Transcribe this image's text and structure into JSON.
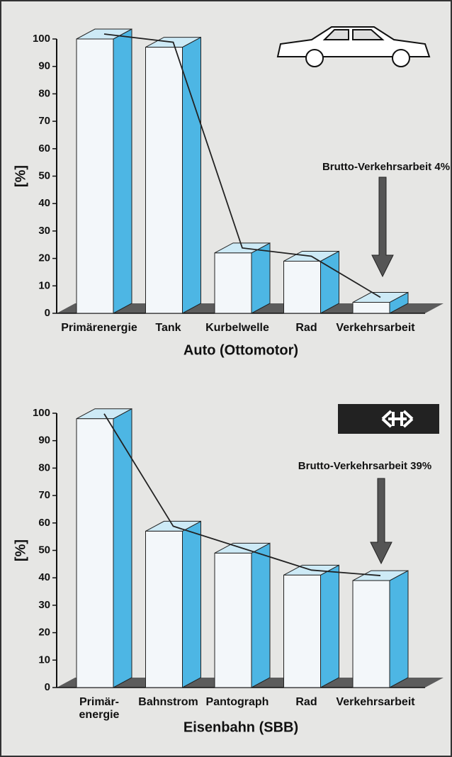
{
  "chart_data": [
    {
      "type": "bar3d",
      "title": "Auto (Ottomotor)",
      "y_label": "[%]",
      "categories": [
        "Primärenergie",
        "Tank",
        "Kurbelwelle",
        "Rad",
        "Verkehrsarbeit"
      ],
      "values": [
        100,
        97,
        22,
        19,
        4
      ],
      "ylim": [
        0,
        100
      ],
      "yticks": [
        0,
        10,
        20,
        30,
        40,
        50,
        60,
        70,
        80,
        90,
        100
      ],
      "annotation": "Brutto-Verkehrsarbeit 4%",
      "color": "#4db6e4"
    },
    {
      "type": "bar3d",
      "title": "Eisenbahn (SBB)",
      "y_label": "[%]",
      "categories": [
        "Primär-\nenergie",
        "Bahnstrom",
        "Pantograph",
        "Rad",
        "Verkehrsarbeit"
      ],
      "values": [
        98,
        57,
        49,
        41,
        39
      ],
      "ylim": [
        0,
        100
      ],
      "yticks": [
        0,
        10,
        20,
        30,
        40,
        50,
        60,
        70,
        80,
        90,
        100
      ],
      "annotation": "Brutto-Verkehrsarbeit 39%",
      "color": "#4db6e4"
    }
  ]
}
